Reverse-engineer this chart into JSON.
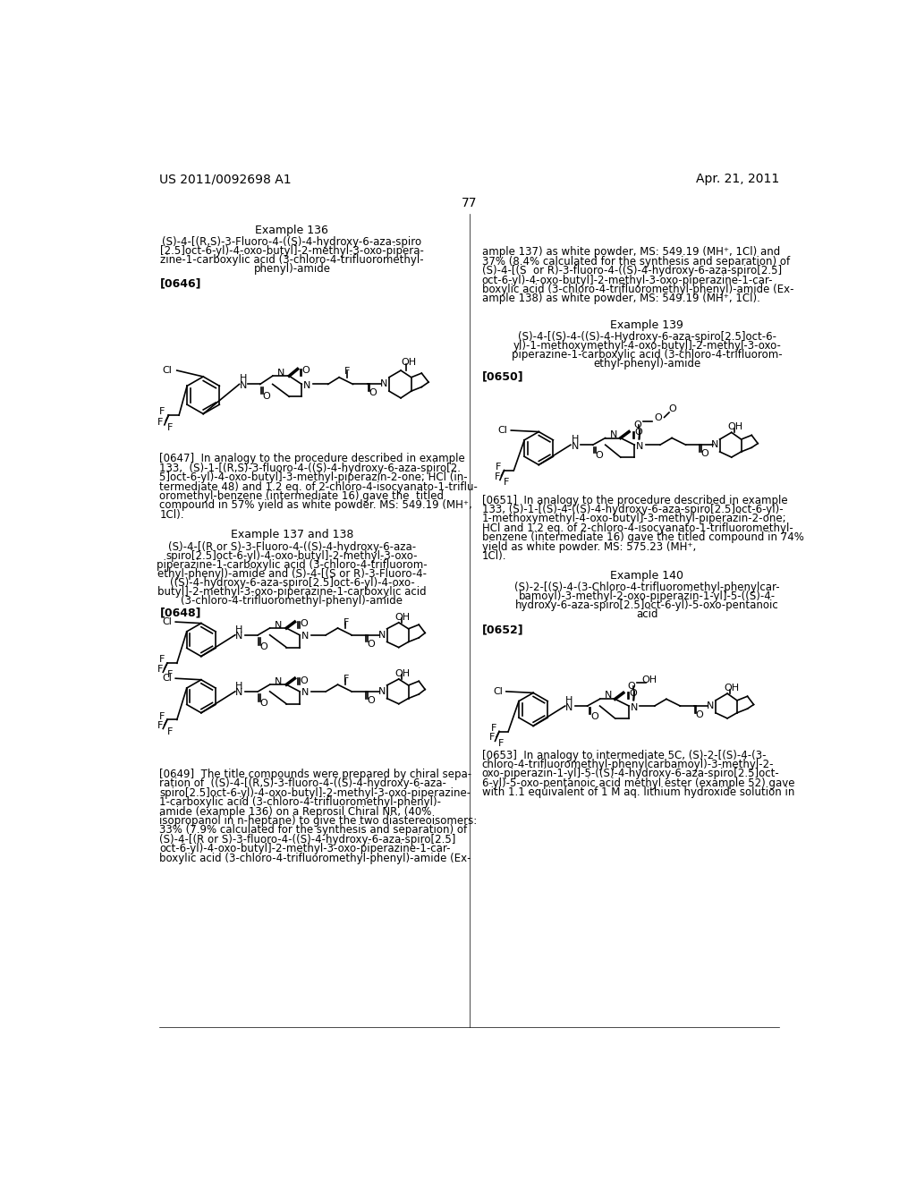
{
  "header_left": "US 2011/0092698 A1",
  "header_right": "Apr. 21, 2011",
  "page_number": "77",
  "background_color": "#ffffff",
  "text_color": "#000000"
}
